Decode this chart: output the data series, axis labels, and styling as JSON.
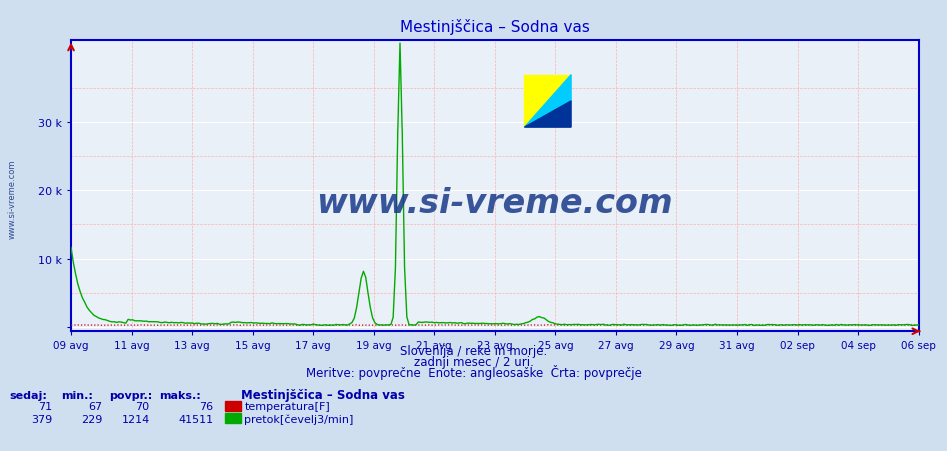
{
  "title": "Mestinjščica – Sodna vas",
  "bg_color": "#d0dff0",
  "plot_bg_color": "#eaf0f8",
  "grid_color_white": "#ffffff",
  "grid_color_red": "#ffb0b0",
  "axis_color": "#0000cc",
  "text_color": "#0000aa",
  "subtitle_lines": [
    "Slovenija / reke in morje.",
    "zadnji mesec / 2 uri.",
    "Meritve: povprečne  Enote: angleosaške  Črta: povprečje"
  ],
  "xlabel_ticks": [
    "09 avg",
    "11 avg",
    "13 avg",
    "15 avg",
    "17 avg",
    "19 avg",
    "21 avg",
    "23 avg",
    "25 avg",
    "27 avg",
    "29 avg",
    "31 avg",
    "02 sep",
    "04 sep",
    "06 sep"
  ],
  "ylabel_ticks": [
    "",
    "10 k",
    "20 k",
    "30 k"
  ],
  "ylabel_values": [
    0,
    10000,
    20000,
    30000
  ],
  "ymax": 42000,
  "ymin": -600,
  "n_points": 372,
  "temp_color": "#cc0000",
  "flow_color": "#00aa00",
  "temp_sedaj": 71,
  "temp_min": 67,
  "temp_povpr": 70,
  "temp_maks": 76,
  "flow_sedaj": 379,
  "flow_min": 229,
  "flow_povpr": 1214,
  "flow_maks": 41511,
  "watermark": "www.si-vreme.com",
  "watermark_color": "#1a3a8a",
  "stats_header": "Mestinjščica – Sodna vas",
  "legend_temp": "temperatura[F]",
  "legend_flow": "pretok[čevelj3/min]",
  "sedaj_label": "sedaj:",
  "min_label": "min.:",
  "povpr_label": "povpr.:",
  "maks_label": "maks.:"
}
